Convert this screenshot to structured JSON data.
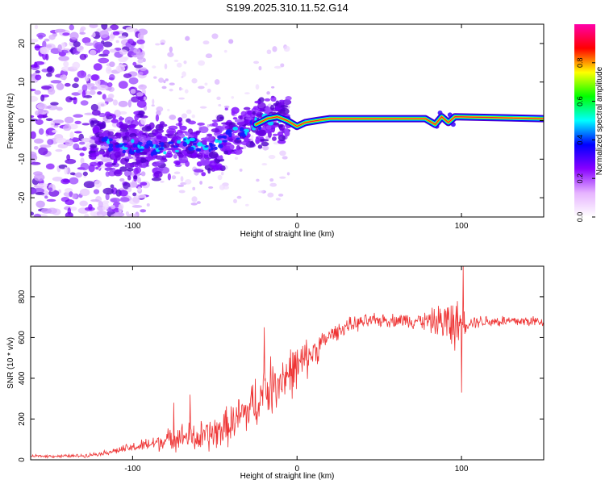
{
  "title": "S199.2025.310.11.52.G14",
  "chart_data": [
    {
      "type": "heatmap",
      "name": "spectrogram",
      "xlabel": "Height of straight line (km)",
      "ylabel": "Frequency (Hz)",
      "xlim": [
        -162,
        150
      ],
      "ylim": [
        -25,
        25
      ],
      "xticks": [
        -100,
        0,
        100
      ],
      "yticks": [
        -20,
        -10,
        0,
        10,
        20
      ],
      "ridge": [
        [
          -120,
          -5.5
        ],
        [
          -105,
          -7
        ],
        [
          -95,
          -6.5
        ],
        [
          -85,
          -7.5
        ],
        [
          -75,
          -7
        ],
        [
          -65,
          -6
        ],
        [
          -55,
          -7
        ],
        [
          -45,
          -5
        ],
        [
          -35,
          -3
        ],
        [
          -25,
          -1
        ],
        [
          -18,
          0.5
        ],
        [
          -12,
          1
        ],
        [
          -6,
          0
        ],
        [
          0,
          -1.5
        ],
        [
          5,
          -0.5
        ],
        [
          12,
          0
        ],
        [
          20,
          0.5
        ],
        [
          40,
          0.5
        ],
        [
          60,
          0.5
        ],
        [
          78,
          0.5
        ],
        [
          84,
          -1
        ],
        [
          88,
          1
        ],
        [
          92,
          -0.5
        ],
        [
          96,
          1
        ],
        [
          150,
          0.5
        ]
      ],
      "colorbar": {
        "label": "Normalized spectral amplitude",
        "ticks": [
          "0.0",
          "0.2",
          "0.4",
          "0.6",
          "0.8"
        ],
        "range": [
          0,
          1
        ],
        "colors": [
          "#ffffff",
          "#e6b3ff",
          "#8800ff",
          "#0000ff",
          "#00ffff",
          "#00ff00",
          "#ffff00",
          "#ff0000",
          "#ff00aa"
        ]
      }
    },
    {
      "type": "line",
      "name": "snr",
      "xlabel": "Height of straight line (km)",
      "ylabel": "SNR (10 * v/v)",
      "xlim": [
        -162,
        150
      ],
      "ylim": [
        0,
        950
      ],
      "xticks": [
        -100,
        0,
        100
      ],
      "yticks": [
        0,
        200,
        400,
        600,
        800
      ],
      "color": "#ee3333",
      "envelope": [
        [
          -162,
          18
        ],
        [
          -140,
          18
        ],
        [
          -130,
          20
        ],
        [
          -120,
          30
        ],
        [
          -110,
          45
        ],
        [
          -100,
          60
        ],
        [
          -90,
          75
        ],
        [
          -80,
          95
        ],
        [
          -70,
          115
        ],
        [
          -60,
          105
        ],
        [
          -50,
          130
        ],
        [
          -40,
          175
        ],
        [
          -30,
          240
        ],
        [
          -20,
          330
        ],
        [
          -10,
          400
        ],
        [
          0,
          450
        ],
        [
          10,
          530
        ],
        [
          20,
          610
        ],
        [
          30,
          655
        ],
        [
          40,
          675
        ],
        [
          50,
          685
        ],
        [
          60,
          685
        ],
        [
          70,
          685
        ],
        [
          80,
          680
        ],
        [
          90,
          675
        ],
        [
          95,
          665
        ],
        [
          100,
          670
        ],
        [
          110,
          680
        ],
        [
          120,
          680
        ],
        [
          150,
          680
        ]
      ],
      "spread": [
        [
          -162,
          8
        ],
        [
          -120,
          12
        ],
        [
          -100,
          30
        ],
        [
          -80,
          60
        ],
        [
          -60,
          100
        ],
        [
          -40,
          120
        ],
        [
          -20,
          180
        ],
        [
          0,
          150
        ],
        [
          20,
          50
        ],
        [
          40,
          45
        ],
        [
          60,
          40
        ],
        [
          80,
          60
        ],
        [
          95,
          170
        ],
        [
          105,
          40
        ],
        [
          150,
          35
        ]
      ],
      "spikes": [
        [
          101,
          950
        ],
        [
          100,
          330
        ],
        [
          -65,
          320
        ],
        [
          -75,
          280
        ],
        [
          -20,
          650
        ]
      ]
    }
  ]
}
